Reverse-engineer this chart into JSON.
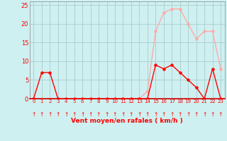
{
  "x": [
    0,
    1,
    2,
    3,
    4,
    5,
    6,
    7,
    8,
    9,
    10,
    11,
    12,
    13,
    14,
    15,
    16,
    17,
    18,
    19,
    20,
    21,
    22,
    23
  ],
  "wind_avg": [
    0,
    7,
    7,
    0,
    0,
    0,
    0,
    0,
    0,
    0,
    0,
    0,
    0,
    0,
    0,
    9,
    8,
    9,
    7,
    5,
    3,
    0,
    8,
    0
  ],
  "wind_gust": [
    0,
    0,
    0,
    0,
    0,
    0,
    0,
    0,
    0,
    0,
    0,
    0,
    0,
    0,
    2,
    18,
    23,
    24,
    24,
    20,
    16,
    18,
    18,
    8
  ],
  "line_color_avg": "#ff0000",
  "line_color_gust": "#ffaaaa",
  "bg_color": "#cff0f0",
  "grid_color": "#aacccc",
  "axis_label_color": "#ff0000",
  "tick_color": "#ff0000",
  "xlabel": "Vent moyen/en rafales ( km/h )",
  "ylim": [
    0,
    26
  ],
  "yticks": [
    0,
    5,
    10,
    15,
    20,
    25
  ],
  "marker_size": 2.2,
  "line_width": 1.0
}
